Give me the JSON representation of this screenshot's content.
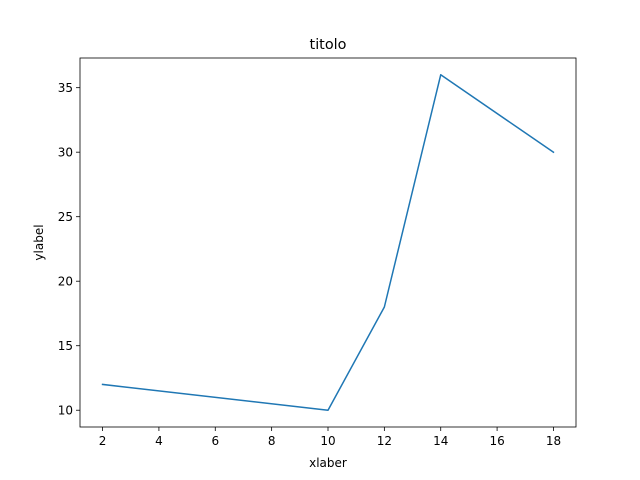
{
  "chart_data": {
    "type": "line",
    "title": "titolo",
    "xlabel": "xlaber",
    "ylabel": "ylabel",
    "x": [
      2,
      10,
      12,
      14,
      18
    ],
    "series": [
      {
        "values": [
          12,
          10,
          18,
          36,
          30
        ],
        "color": "#1f77b4"
      }
    ],
    "xlim": [
      1.2,
      18.8
    ],
    "ylim": [
      8.7,
      37.3
    ],
    "xticks": [
      2,
      4,
      6,
      8,
      10,
      12,
      14,
      16,
      18
    ],
    "yticks": [
      10,
      15,
      20,
      25,
      30,
      35
    ],
    "grid": false,
    "legend": "none"
  }
}
